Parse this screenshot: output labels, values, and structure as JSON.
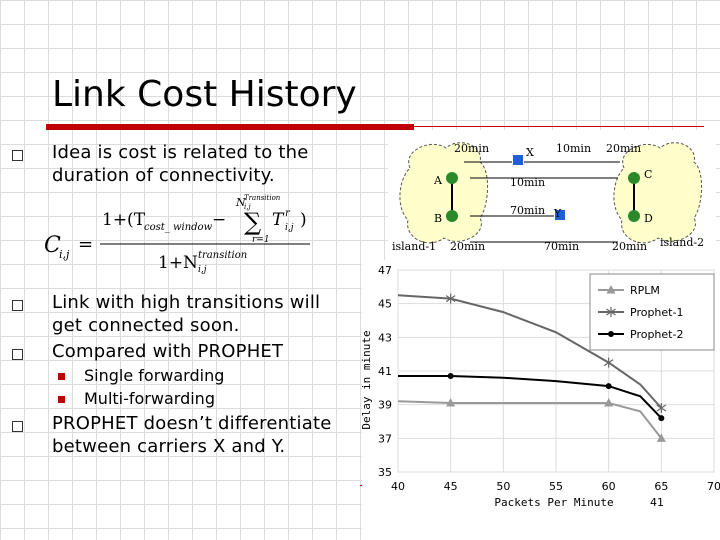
{
  "slide": {
    "title": "Link Cost History",
    "page_number": "41",
    "bullets": [
      {
        "text_l1": "Idea is cost is related to the",
        "text_l2": "duration of connectivity."
      },
      {
        "text_l1": "Link with high transitions will",
        "text_l2": "get connected soon."
      },
      {
        "text_l1": "Compared with PROPHET"
      },
      {
        "text_l1": "PROPHET doesn’t differentiate",
        "text_l2": "between carriers X and Y."
      }
    ],
    "subbullets": [
      "Single forwarding",
      "Multi-forwarding"
    ],
    "colors": {
      "accent": "#c00000"
    }
  },
  "formula": {
    "lhs": "C",
    "lhs_sub": "i,j",
    "num_text": "1+(T",
    "num_sub": "cost_ window",
    "sum_text": "∑",
    "sum_top_text": "N",
    "sum_top_sub": "i,j",
    "sum_top_sup": "Transition",
    "sum_bottom": "r=1",
    "term": "T",
    "term_sup": "r",
    "term_sub": "i,j",
    "den_text": "1+N",
    "den_sub": "i,j",
    "den_sup": "transition"
  },
  "diagram": {
    "islands": [
      "island-1",
      "island-2"
    ],
    "nodes": [
      "A",
      "B",
      "C",
      "D"
    ],
    "carriers": [
      "X",
      "Y"
    ],
    "labels": {
      "top_left": "20min",
      "top_mid": "10min",
      "top_right": "20min",
      "mid_upper": "10min",
      "mid_lower": "70min",
      "bottom_left": "20min",
      "bottom_mid": "70min",
      "bottom_right": "20min"
    }
  },
  "chart_data": {
    "type": "line",
    "xlabel": "Packets Per Minute",
    "ylabel": "Delay in minute",
    "xlim": [
      40,
      70
    ],
    "ylim": [
      35,
      47
    ],
    "xticks": [
      "40",
      "45",
      "50",
      "55",
      "60",
      "65",
      "70"
    ],
    "yticks": [
      "35",
      "37",
      "39",
      "41",
      "43",
      "45",
      "47"
    ],
    "legend_position": "top-right",
    "series": [
      {
        "name": "RPLM",
        "marker": "triangle",
        "color": "#999999",
        "x": [
          40,
          45,
          50,
          55,
          60,
          63,
          65
        ],
        "y": [
          39.2,
          39.1,
          39.1,
          39.1,
          39.1,
          38.6,
          37.0
        ]
      },
      {
        "name": "Prophet-1",
        "marker": "star",
        "color": "#666666",
        "x": [
          40,
          45,
          50,
          55,
          60,
          63,
          65
        ],
        "y": [
          45.5,
          45.3,
          44.5,
          43.3,
          41.5,
          40.2,
          38.8
        ]
      },
      {
        "name": "Prophet-2",
        "marker": "circle",
        "color": "#000000",
        "x": [
          40,
          45,
          50,
          55,
          60,
          63,
          65
        ],
        "y": [
          40.7,
          40.7,
          40.6,
          40.4,
          40.1,
          39.5,
          38.2
        ]
      }
    ],
    "marker_points": [
      [
        45,
        60,
        65
      ],
      [
        45,
        60,
        65
      ],
      [
        45,
        60,
        65
      ]
    ]
  }
}
